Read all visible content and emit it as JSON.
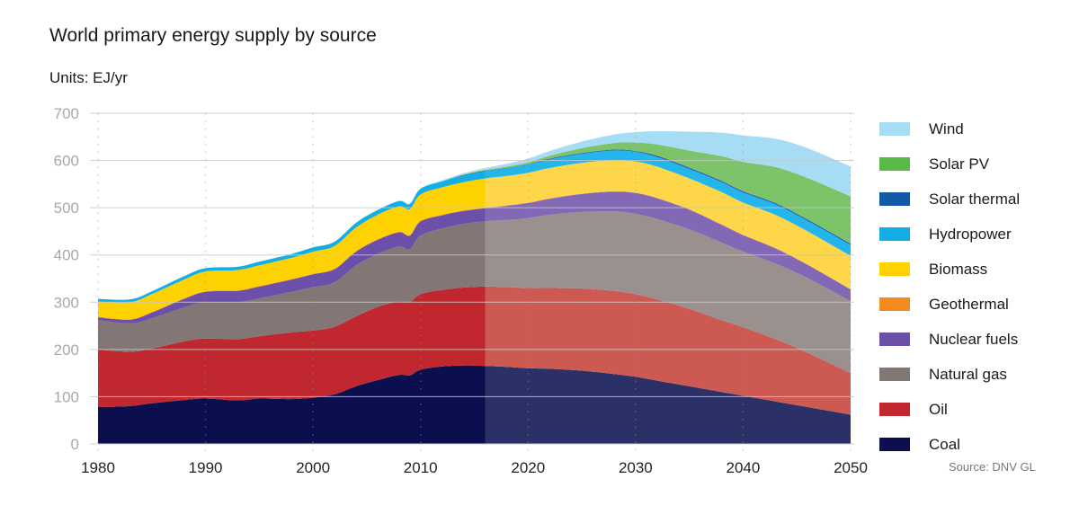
{
  "header": {
    "title": "World primary energy supply by source",
    "units": "Units: EJ/yr"
  },
  "source": "Source: DNV GL",
  "chart_data": {
    "type": "area",
    "stacked": true,
    "title": "World primary energy supply by source",
    "ylabel": "EJ/yr",
    "xlabel": "",
    "xlim": [
      1980,
      2050
    ],
    "ylim": [
      0,
      700
    ],
    "xticks": [
      1980,
      1990,
      2000,
      2010,
      2020,
      2030,
      2040,
      2050
    ],
    "yticks": [
      0,
      100,
      200,
      300,
      400,
      500,
      600,
      700
    ],
    "grid": {
      "horizontal": true,
      "vertical_dotted": true
    },
    "forecast_start": 2016,
    "legend_position": "right",
    "x": [
      1980,
      1983,
      1985,
      1988,
      1990,
      1993,
      1995,
      1998,
      2000,
      2002,
      2004,
      2006,
      2008,
      2009,
      2010,
      2012,
      2014,
      2016,
      2018,
      2020,
      2022,
      2025,
      2028,
      2030,
      2032,
      2035,
      2038,
      2040,
      2043,
      2046,
      2050
    ],
    "series": [
      {
        "name": "Coal",
        "color": "#0b0f4d",
        "forecast_color": "#2b3066",
        "values": [
          78,
          80,
          86,
          93,
          96,
          92,
          96,
          95,
          98,
          105,
          122,
          135,
          146,
          145,
          157,
          164,
          166,
          165,
          163,
          160,
          159,
          155,
          148,
          142,
          134,
          122,
          110,
          102,
          90,
          78,
          62
        ]
      },
      {
        "name": "Oil",
        "color": "#c0272f",
        "forecast_color": "#cd5a52",
        "values": [
          122,
          115,
          116,
          124,
          127,
          130,
          132,
          141,
          142,
          143,
          148,
          155,
          156,
          155,
          160,
          162,
          165,
          168,
          169,
          170,
          171,
          174,
          176,
          175,
          172,
          164,
          152,
          145,
          132,
          115,
          88
        ]
      },
      {
        "name": "Natural gas",
        "color": "#827775",
        "forecast_color": "#9a918f",
        "values": [
          62,
          60,
          64,
          72,
          77,
          78,
          80,
          86,
          92,
          94,
          108,
          112,
          116,
          112,
          124,
          130,
          135,
          138,
          142,
          148,
          155,
          162,
          168,
          170,
          170,
          168,
          164,
          160,
          160,
          158,
          152
        ]
      },
      {
        "name": "Nuclear fuels",
        "color": "#6b4fa8",
        "forecast_color": "#8368b6",
        "values": [
          6,
          8,
          12,
          18,
          22,
          24,
          25,
          26,
          27,
          28,
          29,
          30,
          30,
          29,
          30,
          28,
          27,
          28,
          30,
          32,
          34,
          38,
          42,
          44,
          44,
          42,
          38,
          35,
          32,
          28,
          25
        ]
      },
      {
        "name": "Geothermal",
        "color": "#f38b1f",
        "forecast_color": "#f5a04b",
        "values": [
          1,
          1,
          1,
          1,
          1,
          1,
          1,
          1,
          1,
          1,
          1,
          1,
          1,
          1,
          1,
          1,
          1,
          1,
          1,
          1,
          1,
          1,
          1,
          1,
          1,
          1,
          1,
          1,
          1,
          1,
          1
        ]
      },
      {
        "name": "Biomass",
        "color": "#fdd200",
        "forecast_color": "#fdd64a",
        "values": [
          32,
          36,
          38,
          40,
          42,
          43,
          44,
          45,
          47,
          48,
          50,
          52,
          54,
          55,
          56,
          58,
          60,
          62,
          62,
          63,
          64,
          65,
          66,
          66,
          66,
          65,
          68,
          68,
          70,
          70,
          70
        ]
      },
      {
        "name": "Hydropower",
        "color": "#13aee6",
        "forecast_color": "#23b6ec",
        "values": [
          6,
          6,
          6,
          7,
          7,
          7,
          8,
          8,
          9,
          9,
          10,
          10,
          11,
          11,
          12,
          13,
          14,
          15,
          16,
          17,
          18,
          19,
          20,
          20,
          20,
          20,
          21,
          21,
          22,
          22,
          23
        ]
      },
      {
        "name": "Solar thermal",
        "color": "#1458a8",
        "forecast_color": "#2a66b0",
        "values": [
          0,
          0,
          0,
          0,
          0,
          0,
          0,
          0,
          0,
          0,
          0,
          0,
          0,
          0,
          0,
          0,
          1,
          1,
          1,
          1,
          2,
          2,
          2,
          2,
          3,
          3,
          3,
          3,
          3,
          3,
          3
        ]
      },
      {
        "name": "Solar PV",
        "color": "#58b947",
        "forecast_color": "#7cc36a",
        "values": [
          0,
          0,
          0,
          0,
          0,
          0,
          0,
          0,
          0,
          0,
          0,
          0,
          0,
          0,
          0,
          0,
          1,
          2,
          3,
          4,
          6,
          10,
          14,
          18,
          24,
          36,
          52,
          62,
          76,
          88,
          100
        ]
      },
      {
        "name": "Wind",
        "color": "#a6dcf4",
        "forecast_color": "#a6dcf4",
        "values": [
          0,
          0,
          0,
          0,
          0,
          0,
          0,
          0,
          0,
          0,
          0,
          0,
          1,
          1,
          1,
          2,
          3,
          4,
          6,
          8,
          10,
          14,
          18,
          22,
          28,
          40,
          50,
          56,
          60,
          63,
          63
        ]
      }
    ]
  },
  "legend": [
    {
      "label": "Wind",
      "color": "#a6dcf4"
    },
    {
      "label": "Solar PV",
      "color": "#58b947"
    },
    {
      "label": "Solar thermal",
      "color": "#1458a8"
    },
    {
      "label": "Hydropower",
      "color": "#13aee6"
    },
    {
      "label": "Biomass",
      "color": "#fdd200"
    },
    {
      "label": "Geothermal",
      "color": "#f38b1f"
    },
    {
      "label": "Nuclear fuels",
      "color": "#6b4fa8"
    },
    {
      "label": "Natural gas",
      "color": "#827775"
    },
    {
      "label": "Oil",
      "color": "#c0272f"
    },
    {
      "label": "Coal",
      "color": "#0b0f4d"
    }
  ]
}
